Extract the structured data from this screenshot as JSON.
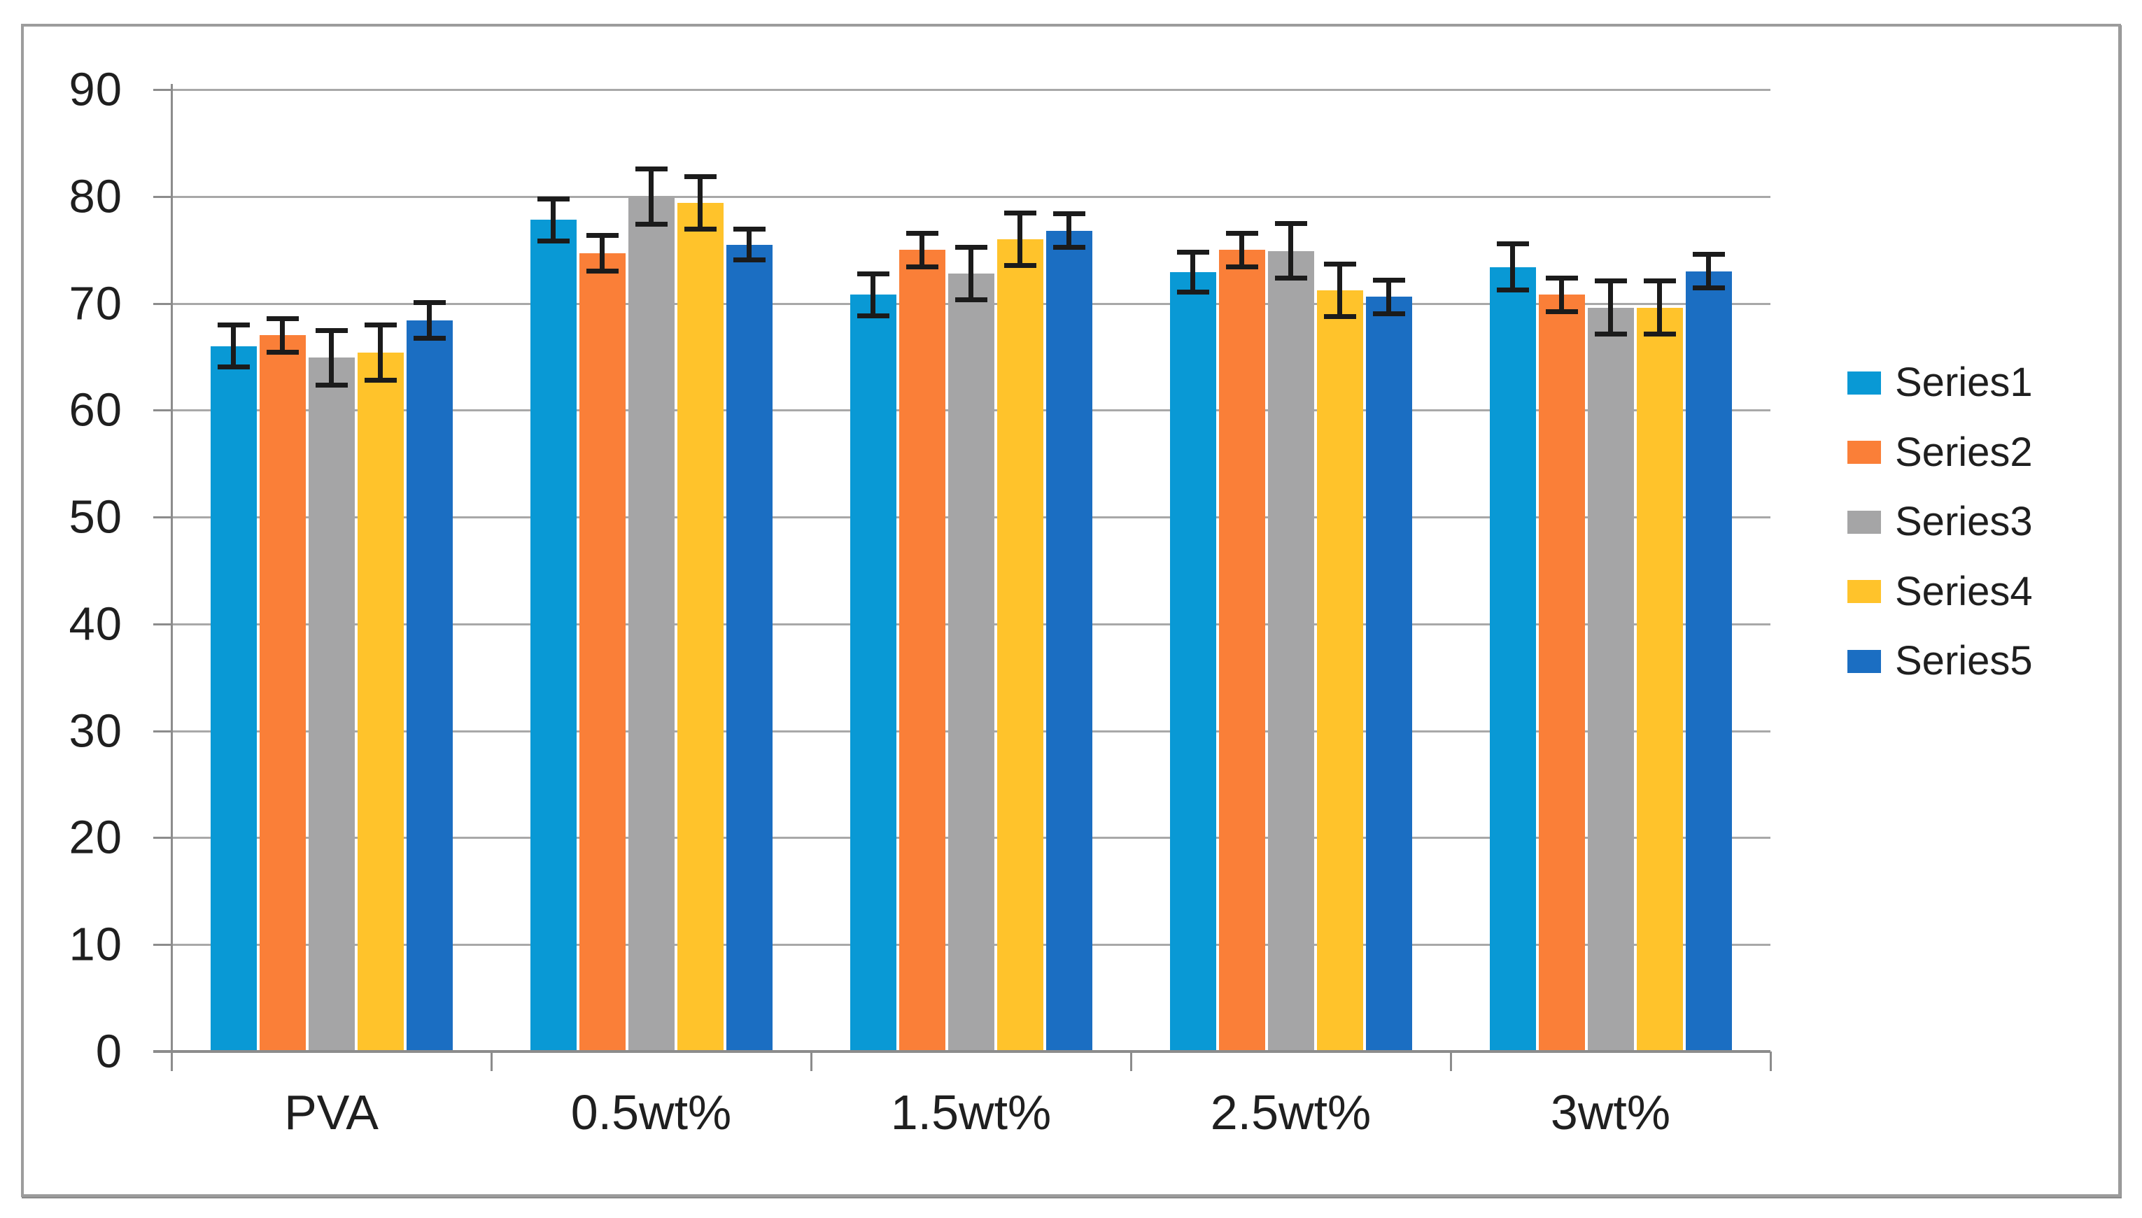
{
  "chart_data": {
    "type": "bar",
    "title": "",
    "categories": [
      "PVA",
      "0.5wt%",
      "1.5wt%",
      "2.5wt%",
      "3wt%"
    ],
    "series": [
      {
        "name": "Series1",
        "color": "#0999D5",
        "values": [
          66.0,
          77.8,
          70.8,
          72.9,
          73.4
        ],
        "errors": [
          2.0,
          2.0,
          2.0,
          1.9,
          2.2
        ]
      },
      {
        "name": "Series2",
        "color": "#FA7F38",
        "values": [
          67.0,
          74.7,
          75.0,
          75.0,
          70.8
        ],
        "errors": [
          1.6,
          1.7,
          1.6,
          1.6,
          1.6
        ]
      },
      {
        "name": "Series3",
        "color": "#A5A5A6",
        "values": [
          64.9,
          80.0,
          72.8,
          74.9,
          69.6
        ],
        "errors": [
          2.6,
          2.6,
          2.5,
          2.6,
          2.5
        ]
      },
      {
        "name": "Series4",
        "color": "#FFC32B",
        "values": [
          65.4,
          79.4,
          76.0,
          71.2,
          69.6
        ],
        "errors": [
          2.6,
          2.5,
          2.5,
          2.5,
          2.5
        ]
      },
      {
        "name": "Series5",
        "color": "#1B6EC2",
        "values": [
          68.4,
          75.5,
          76.8,
          70.6,
          73.0
        ],
        "errors": [
          1.7,
          1.5,
          1.6,
          1.6,
          1.6
        ]
      }
    ],
    "ylim": [
      0,
      90
    ],
    "ytick_step": 10,
    "ytick_labels": [
      "0",
      "10",
      "20",
      "30",
      "40",
      "50",
      "60",
      "70",
      "80",
      "90"
    ],
    "xlabel": "",
    "ylabel": "",
    "grid": "horizontal",
    "legend_position": "right",
    "error_bars": true
  },
  "colors": {
    "background": "#FFFFFF",
    "frame_border": "#9C9C9C",
    "gridline": "#A8A8A8",
    "axis": "#8C8C8C",
    "error_bar": "#1B1B1B",
    "text": "#1F1F1F"
  }
}
